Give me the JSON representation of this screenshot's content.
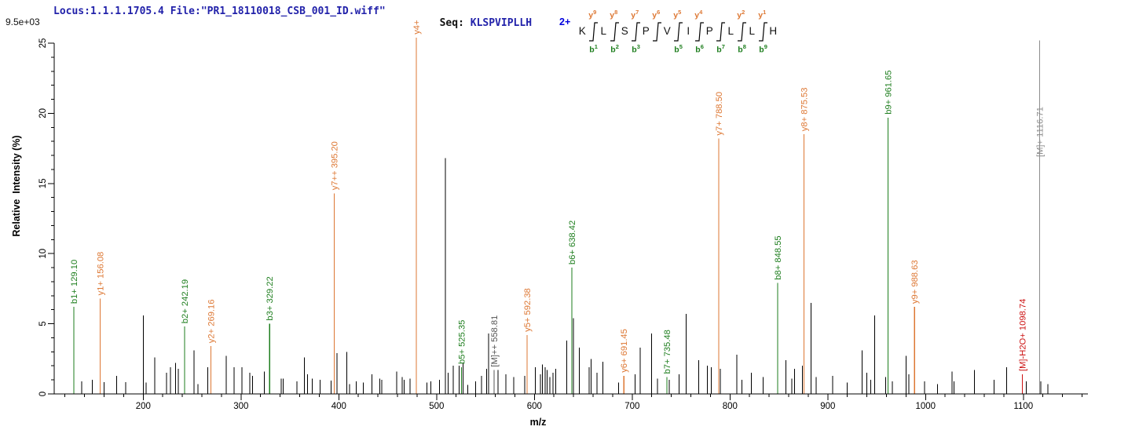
{
  "header": {
    "locus_file": "Locus:1.1.1.1705.4 File:\"PR1_18110018_CSB_001_ID.wiff\"",
    "seq_label": "Seq:",
    "seq_value": "KLSPVIPLLH"
  },
  "peptide_diagram": {
    "charge": "2+",
    "residues": "KLSPVIPLLH",
    "boundaries": [
      {
        "y": "y9",
        "b": "b1"
      },
      {
        "y": "y8",
        "b": "b2"
      },
      {
        "y": "y7",
        "b": "b3"
      },
      {
        "y": "y6",
        "b": null
      },
      {
        "y": "y5",
        "b": "b5"
      },
      {
        "y": "y4",
        "b": "b6"
      },
      {
        "y": null,
        "b": "b7"
      },
      {
        "y": "y2",
        "b": "b8"
      },
      {
        "y": "y1",
        "b": "b9"
      }
    ]
  },
  "chart_data": {
    "type": "bar",
    "chart_kind": "ms2_fragment_ion_spectrum",
    "title": "",
    "xlabel": "m/z",
    "ylabel": "Relative  Intensity (%)",
    "intensity_scale_label": "9.5e+03",
    "xlim": [
      109,
      1166
    ],
    "ylim": [
      0,
      25
    ],
    "x_major_ticks": [
      200,
      300,
      400,
      500,
      600,
      700,
      800,
      900,
      1000,
      1100
    ],
    "x_minor_tick_step": 20,
    "y_major_ticks": [
      0,
      5,
      10,
      15,
      20,
      25
    ],
    "y_minor_tick_step": 1,
    "grid": false,
    "legend": "none",
    "annotated_peaks": [
      {
        "label": "b1+ 129.10",
        "mz": 129.1,
        "intensity_pct": 6.2,
        "series": "b"
      },
      {
        "label": "y1+ 156.08",
        "mz": 156.08,
        "intensity_pct": 6.8,
        "series": "y"
      },
      {
        "label": "b2+ 242.19",
        "mz": 242.19,
        "intensity_pct": 4.8,
        "series": "b"
      },
      {
        "label": "y2+ 269.16",
        "mz": 269.16,
        "intensity_pct": 3.4,
        "series": "y"
      },
      {
        "label": "b3+ 329.22",
        "mz": 329.22,
        "intensity_pct": 5.0,
        "series": "b"
      },
      {
        "label": "y7++ 395.20",
        "mz": 395.2,
        "intensity_pct": 14.3,
        "series": "y"
      },
      {
        "label": "y4+",
        "mz": 479.33,
        "intensity_pct": 25.4,
        "series": "y",
        "label_clipped": true
      },
      {
        "label": "b5+ 525.35",
        "mz": 525.35,
        "intensity_pct": 1.9,
        "series": "b"
      },
      {
        "label": "[M]++ 558.81",
        "mz": 558.81,
        "intensity_pct": 1.7,
        "series": "m2"
      },
      {
        "label": "y5+ 592.38",
        "mz": 592.38,
        "intensity_pct": 4.2,
        "series": "y"
      },
      {
        "label": "b6+ 638.42",
        "mz": 638.42,
        "intensity_pct": 9.0,
        "series": "b"
      },
      {
        "label": "y6+ 691.45",
        "mz": 691.45,
        "intensity_pct": 1.3,
        "series": "y"
      },
      {
        "label": "b7+ 735.48",
        "mz": 735.48,
        "intensity_pct": 1.2,
        "series": "b"
      },
      {
        "label": "y7+ 788.50",
        "mz": 788.5,
        "intensity_pct": 18.2,
        "series": "y"
      },
      {
        "label": "b8+ 848.55",
        "mz": 848.55,
        "intensity_pct": 7.9,
        "series": "b"
      },
      {
        "label": "y8+ 875.53",
        "mz": 875.53,
        "intensity_pct": 18.5,
        "series": "y"
      },
      {
        "label": "b9+ 961.65",
        "mz": 961.65,
        "intensity_pct": 19.7,
        "series": "b"
      },
      {
        "label": "y9+ 988.63",
        "mz": 988.63,
        "intensity_pct": 6.2,
        "series": "y"
      },
      {
        "label": "[M]-H2O+ 1098.74",
        "mz": 1098.74,
        "intensity_pct": 1.4,
        "series": "mh2o"
      },
      {
        "label": "[M]+ 1116.71",
        "mz": 1116.71,
        "intensity_pct": 25.2,
        "series": "m",
        "label_anchor_y": 200
      }
    ],
    "background_peaks": [
      [
        137,
        0.9
      ],
      [
        148,
        1.0
      ],
      [
        160,
        0.85
      ],
      [
        173,
        1.3
      ],
      [
        182,
        0.85
      ],
      [
        200,
        5.6
      ],
      [
        203,
        0.8
      ],
      [
        212,
        2.6
      ],
      [
        224,
        1.5
      ],
      [
        228,
        1.9
      ],
      [
        233,
        2.2
      ],
      [
        236,
        1.8
      ],
      [
        252,
        3.1
      ],
      [
        256,
        0.7
      ],
      [
        266,
        1.9
      ],
      [
        285,
        2.7
      ],
      [
        293,
        1.9
      ],
      [
        301,
        1.9
      ],
      [
        309,
        1.5
      ],
      [
        312,
        1.3
      ],
      [
        324,
        1.6
      ],
      [
        341,
        1.1
      ],
      [
        343,
        1.1
      ],
      [
        357,
        0.9
      ],
      [
        365,
        2.6
      ],
      [
        368,
        1.4
      ],
      [
        373,
        1.1
      ],
      [
        381,
        1.0
      ],
      [
        392,
        0.95
      ],
      [
        398,
        2.9
      ],
      [
        408,
        3.0
      ],
      [
        411,
        0.7
      ],
      [
        418,
        0.9
      ],
      [
        425,
        0.8
      ],
      [
        434,
        1.4
      ],
      [
        442,
        1.1
      ],
      [
        444,
        1.0
      ],
      [
        459,
        1.6
      ],
      [
        465,
        1.2
      ],
      [
        467,
        1.0
      ],
      [
        473,
        1.1
      ],
      [
        490,
        0.8
      ],
      [
        494,
        0.9
      ],
      [
        503,
        1.0
      ],
      [
        509,
        16.8
      ],
      [
        512,
        1.5
      ],
      [
        517,
        2.0
      ],
      [
        523,
        2.0
      ],
      [
        527,
        2.2
      ],
      [
        532,
        0.65
      ],
      [
        540,
        0.9
      ],
      [
        546,
        1.3
      ],
      [
        551,
        1.8
      ],
      [
        553,
        4.3
      ],
      [
        563,
        1.7
      ],
      [
        571,
        1.4
      ],
      [
        579,
        1.2
      ],
      [
        590,
        1.3
      ],
      [
        601,
        1.9
      ],
      [
        606,
        1.4
      ],
      [
        608,
        2.1
      ],
      [
        611,
        1.9
      ],
      [
        613,
        1.7
      ],
      [
        616,
        1.2
      ],
      [
        619,
        1.5
      ],
      [
        622,
        1.8
      ],
      [
        633,
        3.8
      ],
      [
        640,
        5.4
      ],
      [
        646,
        3.3
      ],
      [
        656,
        1.9
      ],
      [
        658,
        2.5
      ],
      [
        664,
        1.5
      ],
      [
        670,
        2.3
      ],
      [
        686,
        0.8
      ],
      [
        703,
        1.4
      ],
      [
        708,
        3.3
      ],
      [
        720,
        4.3
      ],
      [
        726,
        1.1
      ],
      [
        738,
        1.0
      ],
      [
        748,
        1.4
      ],
      [
        755,
        5.7
      ],
      [
        768,
        2.4
      ],
      [
        777,
        2.0
      ],
      [
        781,
        1.9
      ],
      [
        790,
        1.8
      ],
      [
        807,
        2.8
      ],
      [
        812,
        1.0
      ],
      [
        822,
        1.5
      ],
      [
        834,
        1.2
      ],
      [
        857,
        2.4
      ],
      [
        863,
        1.1
      ],
      [
        866,
        1.8
      ],
      [
        874,
        2.0
      ],
      [
        883,
        6.5
      ],
      [
        888,
        1.2
      ],
      [
        905,
        1.3
      ],
      [
        920,
        0.8
      ],
      [
        935,
        3.1
      ],
      [
        940,
        1.5
      ],
      [
        944,
        1.0
      ],
      [
        948,
        5.6
      ],
      [
        959,
        1.2
      ],
      [
        966,
        0.9
      ],
      [
        980,
        2.7
      ],
      [
        983,
        1.4
      ],
      [
        989,
        1.7
      ],
      [
        999,
        0.9
      ],
      [
        1012,
        0.7
      ],
      [
        1027,
        1.6
      ],
      [
        1029,
        0.9
      ],
      [
        1050,
        1.7
      ],
      [
        1070,
        1.0
      ],
      [
        1083,
        1.9
      ],
      [
        1103,
        0.9
      ],
      [
        1118,
        0.9
      ],
      [
        1125,
        0.7
      ]
    ],
    "colors": {
      "b": "#1e7e1e",
      "y": "#dd7733",
      "m": "#8c8c8c",
      "m2": "#555555",
      "mh2o": "#cc1111",
      "bg": "#000000",
      "axis": "#000000",
      "header_blue": "#2222aa",
      "charge_blue": "#0000dd"
    }
  }
}
